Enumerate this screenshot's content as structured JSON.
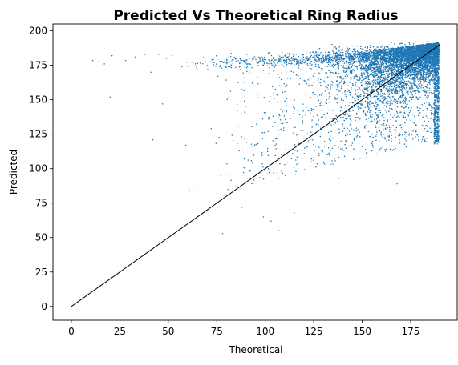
{
  "chart_data": {
    "type": "scatter",
    "title": "Predicted Vs Theoretical Ring Radius",
    "xlabel": "Theoretical",
    "ylabel": "Predicted",
    "xlim": [
      -9.5,
      199
    ],
    "ylim": [
      -10,
      205
    ],
    "xticks": [
      0,
      25,
      50,
      75,
      100,
      125,
      150,
      175
    ],
    "yticks": [
      0,
      25,
      50,
      75,
      100,
      125,
      150,
      175,
      200
    ],
    "xtick_labels": [
      "0",
      "25",
      "50",
      "75",
      "100",
      "125",
      "150",
      "175"
    ],
    "ytick_labels": [
      "0",
      "25",
      "50",
      "75",
      "100",
      "125",
      "150",
      "175",
      "200"
    ],
    "grid": false,
    "legend": "none",
    "point_color": "#1f77b4",
    "line_color": "#000000",
    "reference_line": {
      "x": [
        0,
        190
      ],
      "y": [
        0,
        190
      ]
    },
    "point_cloud": {
      "description_note": "",
      "dense_region": {
        "x": [
          115,
          190
        ],
        "y": [
          140,
          193
        ]
      },
      "top_band": {
        "x": [
          55,
          190
        ],
        "y": [
          172,
          190
        ]
      },
      "sparse_left": [
        {
          "x": 11,
          "y": 178.5
        },
        {
          "x": 14,
          "y": 177.5
        },
        {
          "x": 17,
          "y": 176
        },
        {
          "x": 21,
          "y": 182
        },
        {
          "x": 28,
          "y": 178.5
        },
        {
          "x": 33,
          "y": 181
        },
        {
          "x": 38,
          "y": 183
        },
        {
          "x": 41,
          "y": 170
        },
        {
          "x": 20,
          "y": 152
        },
        {
          "x": 42,
          "y": 121
        },
        {
          "x": 45,
          "y": 183
        },
        {
          "x": 49,
          "y": 180
        },
        {
          "x": 47,
          "y": 147
        },
        {
          "x": 52,
          "y": 182
        },
        {
          "x": 57,
          "y": 174
        },
        {
          "x": 59,
          "y": 117
        },
        {
          "x": 61,
          "y": 84
        },
        {
          "x": 65,
          "y": 84
        },
        {
          "x": 78,
          "y": 53
        },
        {
          "x": 99,
          "y": 65
        },
        {
          "x": 103,
          "y": 62
        },
        {
          "x": 107,
          "y": 55
        },
        {
          "x": 88,
          "y": 72
        },
        {
          "x": 115,
          "y": 68
        },
        {
          "x": 168,
          "y": 89
        }
      ]
    }
  }
}
